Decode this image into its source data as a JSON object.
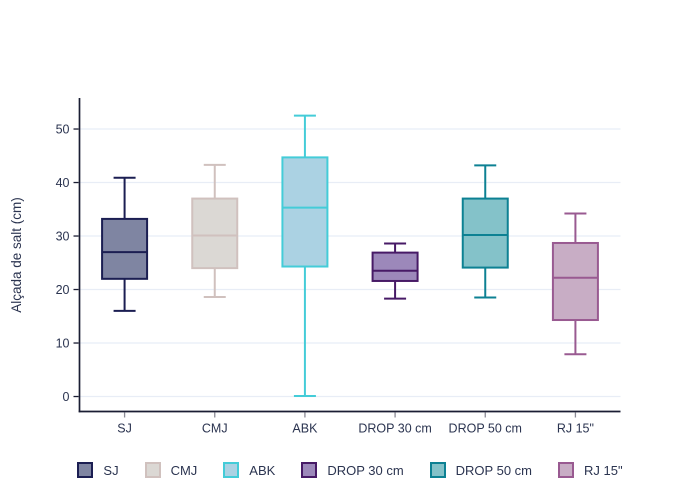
{
  "chart_data": {
    "type": "box",
    "title": "",
    "xlabel": "",
    "ylabel": "Alçada de salt (cm)",
    "categories": [
      "SJ",
      "CMJ",
      "ABK",
      "DROP 30 cm",
      "DROP 50 cm",
      "RJ 15\""
    ],
    "yticks": [
      0,
      10,
      20,
      30,
      40,
      50
    ],
    "ylim": [
      -2.8,
      55.8
    ],
    "grid": true,
    "legend_position": "bottom",
    "series": [
      {
        "name": "SJ",
        "min": 16.0,
        "q1": 22.0,
        "median": 27.0,
        "q3": 33.2,
        "max": 40.9,
        "fill": "#7f85a2",
        "stroke": "#1b1e52"
      },
      {
        "name": "CMJ",
        "min": 18.6,
        "q1": 24.0,
        "median": 30.1,
        "q3": 37.0,
        "max": 43.3,
        "fill": "#dbd8d4",
        "stroke": "#d0c1be"
      },
      {
        "name": "ABK",
        "min": 0.1,
        "q1": 24.3,
        "median": 35.3,
        "q3": 44.7,
        "max": 52.5,
        "fill": "#abd2e3",
        "stroke": "#44ccd8"
      },
      {
        "name": "DROP 30 cm",
        "min": 18.3,
        "q1": 21.6,
        "median": 23.5,
        "q3": 26.9,
        "max": 28.6,
        "fill": "#9c88ba",
        "stroke": "#471a66"
      },
      {
        "name": "DROP 50 cm",
        "min": 18.5,
        "q1": 24.1,
        "median": 30.2,
        "q3": 37.0,
        "max": 43.2,
        "fill": "#84c2c9",
        "stroke": "#0d8193"
      },
      {
        "name": "RJ 15\"",
        "min": 7.9,
        "q1": 14.3,
        "median": 22.2,
        "q3": 28.7,
        "max": 34.2,
        "fill": "#c8adc5",
        "stroke": "#995a91"
      }
    ]
  },
  "colors": {
    "background": "#ffffff",
    "text": "#2b3450",
    "axis": "#1a1d33",
    "grid": "#e8edf6",
    "x_tick": "#8a8a95"
  }
}
